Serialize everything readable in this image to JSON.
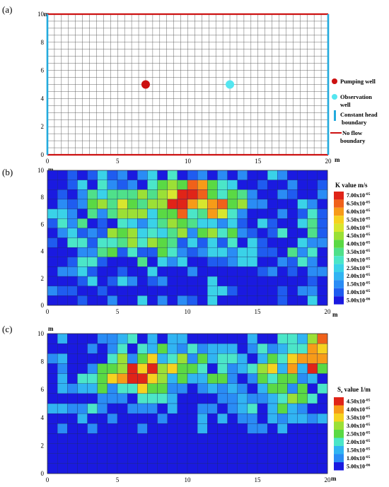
{
  "panels": [
    {
      "id": "a",
      "label": "(a)",
      "y_unit": "m",
      "x_unit": "m",
      "x_ticks": [
        "0",
        "5",
        "10",
        "15",
        "20"
      ],
      "y_ticks": [
        "0",
        "2",
        "4",
        "6",
        "8",
        "10"
      ],
      "x_range": [
        0,
        20
      ],
      "y_range": [
        0,
        10
      ],
      "grid_cols": 40,
      "grid_rows": 20,
      "pumping_well": {
        "x": 7,
        "y": 5,
        "color": "#cc1111"
      },
      "observation_well": {
        "x": 13,
        "y": 5,
        "color": "#55e6f0"
      },
      "constant_head_color": "#22aadd",
      "no_flow_color": "#cc1111",
      "legend": {
        "pumping": "Pumping well",
        "observation_1": "Observation",
        "observation_2": "well",
        "constant_1": "Constant head",
        "constant_2": "boundary",
        "noflow_1": "No flow",
        "noflow_2": "boundary"
      }
    },
    {
      "id": "b",
      "label": "(b)",
      "y_unit": "m",
      "x_unit": "m",
      "x_ticks": [
        "0",
        "5",
        "10",
        "15",
        "20"
      ],
      "y_ticks": [
        "0",
        "2",
        "4",
        "6",
        "8",
        "10"
      ],
      "colorbar_title": "K value m/s",
      "colorbar_mantissas": [
        "7.00x10",
        "6.50x10",
        "6.00x10",
        "5.50x10",
        "5.00x10",
        "4.50x10",
        "4.00x10",
        "3.50x10",
        "3.00x10",
        "2.50x10",
        "2.00x10",
        "1.50x10",
        "1.00x10",
        "5.00x10"
      ],
      "colorbar_exps": [
        "-05",
        "-05",
        "-05",
        "-05",
        "-05",
        "-05",
        "-05",
        "-05",
        "-05",
        "-05",
        "-05",
        "-05",
        "-05",
        "-06"
      ]
    },
    {
      "id": "c",
      "label": "(c)",
      "y_unit": "m",
      "x_unit": "m",
      "x_ticks": [
        "0",
        "5",
        "10",
        "15",
        "20"
      ],
      "y_ticks": [
        "0",
        "2",
        "4",
        "6",
        "8",
        "10"
      ],
      "colorbar_title_s": "S",
      "colorbar_title_sub": "s",
      "colorbar_title_rest": " value 1/m",
      "colorbar_mantissas": [
        "4.50x10",
        "4.00x10",
        "3.50x10",
        "3.00x10",
        "2.50x10",
        "2.00x10",
        "1.50x10",
        "1.00x10",
        "5.00x10"
      ],
      "colorbar_exps": [
        "-05",
        "-05",
        "-05",
        "-05",
        "-05",
        "-05",
        "-05",
        "-05",
        "-06"
      ]
    }
  ],
  "colors": {
    "ramp": [
      "#1a1ae0",
      "#1f5cf0",
      "#2a8cf5",
      "#31b4f2",
      "#3ad2e8",
      "#4be6c8",
      "#4fe08a",
      "#5ad944",
      "#9be036",
      "#d8e62e",
      "#f6d21f",
      "#f79b18",
      "#f0611a",
      "#e02418"
    ]
  }
}
